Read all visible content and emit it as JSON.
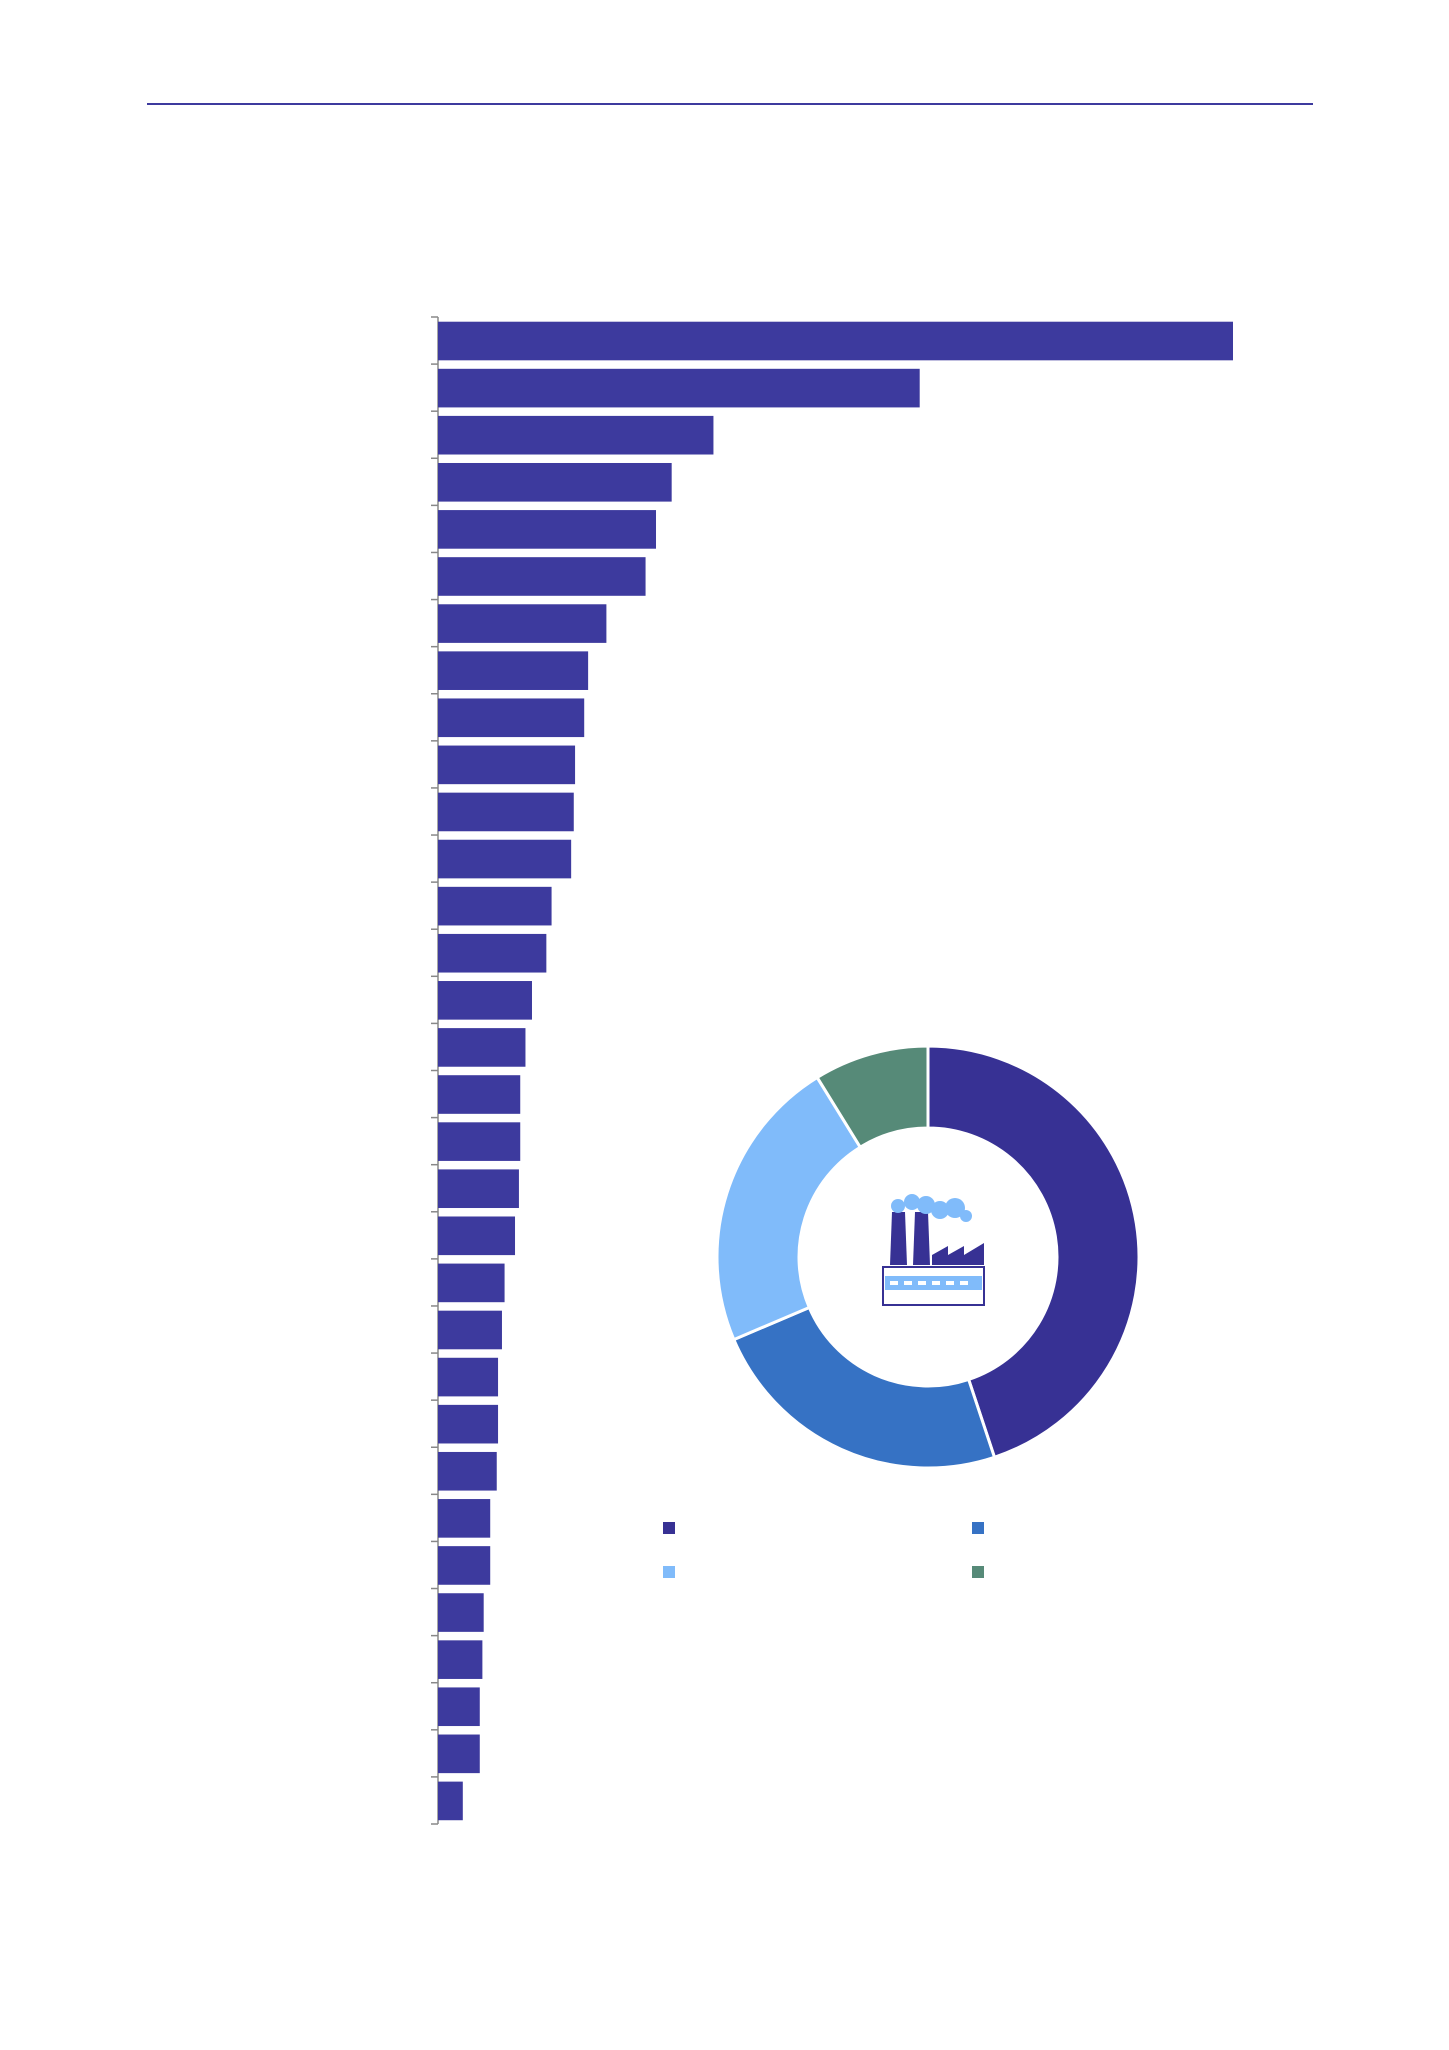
{
  "chart_data": [
    {
      "type": "barh",
      "color": "#3d3a9e",
      "values": [
        609,
        369,
        211,
        179,
        167,
        159,
        129,
        115,
        112,
        105,
        104,
        102,
        87,
        83,
        72,
        67,
        63,
        63,
        62,
        59,
        51,
        49,
        46,
        46,
        45,
        40,
        40,
        35,
        34,
        32,
        32,
        19
      ],
      "xlim": [
        0,
        609
      ]
    },
    {
      "type": "donut",
      "values": [
        44.9,
        23.7,
        22.6,
        8.8
      ],
      "colors": [
        "#373194",
        "#3672c4",
        "#80bbfa",
        "#568a78"
      ]
    }
  ]
}
